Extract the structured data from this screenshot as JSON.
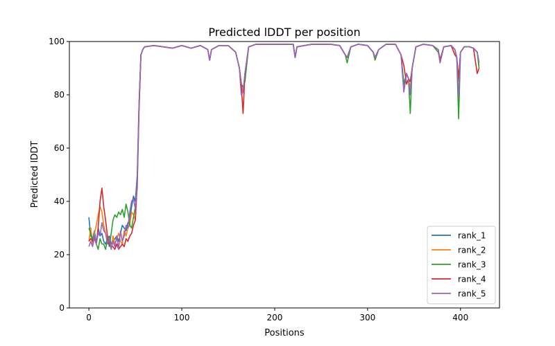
{
  "chart_data": {
    "type": "line",
    "title": "Predicted lDDT per position",
    "xlabel": "Positions",
    "ylabel": "Predicted lDDT",
    "xlim": [
      -21,
      442
    ],
    "ylim": [
      0,
      100
    ],
    "xticks": [
      0,
      100,
      200,
      300,
      400
    ],
    "yticks": [
      0,
      20,
      40,
      60,
      80,
      100
    ],
    "grid": false,
    "legend_position": "lower-right",
    "x": [
      0,
      2,
      4,
      6,
      8,
      10,
      12,
      14,
      16,
      18,
      20,
      22,
      24,
      26,
      28,
      30,
      32,
      34,
      36,
      38,
      40,
      42,
      44,
      46,
      48,
      50,
      52,
      54,
      56,
      58,
      60,
      70,
      80,
      90,
      100,
      110,
      120,
      128,
      130,
      132,
      140,
      150,
      158,
      162,
      164,
      166,
      168,
      172,
      180,
      200,
      220,
      222,
      224,
      240,
      260,
      270,
      276,
      278,
      282,
      290,
      300,
      306,
      308,
      312,
      320,
      330,
      336,
      339,
      342,
      344,
      346,
      348,
      352,
      360,
      370,
      376,
      378,
      382,
      390,
      394,
      396,
      398,
      400,
      404,
      410,
      414,
      418,
      420
    ],
    "series": [
      {
        "name": "rank_1",
        "color": "#1f77b4",
        "values": [
          34,
          27,
          26,
          29,
          24,
          30,
          27,
          28,
          25,
          24,
          26,
          27,
          24,
          25,
          26,
          27,
          25,
          28,
          31,
          30,
          29,
          32,
          33,
          38,
          42,
          40,
          50,
          76,
          95,
          97,
          98,
          98.5,
          98,
          97.5,
          98.5,
          97.5,
          98.5,
          97,
          93,
          97,
          98.5,
          98.5,
          96,
          90,
          84,
          81,
          88,
          98,
          99,
          99,
          99,
          94,
          98,
          99,
          99,
          98.5,
          95,
          94,
          98,
          99,
          98.5,
          96,
          94,
          97,
          99,
          99,
          95,
          84,
          88,
          86,
          82,
          90,
          98,
          99,
          98.5,
          97,
          93,
          98,
          98.5,
          97,
          94,
          85,
          96,
          98,
          98,
          97.5,
          96,
          92
        ]
      },
      {
        "name": "rank_2",
        "color": "#ff7f0e",
        "values": [
          25,
          30,
          24,
          28,
          31,
          35,
          38,
          36,
          31,
          28,
          25,
          25,
          22,
          27,
          24,
          26,
          28,
          25,
          24,
          29,
          27,
          30,
          31,
          36,
          35,
          33,
          48,
          76,
          95,
          97,
          98,
          98.5,
          98,
          97.5,
          98.5,
          97.5,
          98.5,
          97,
          93,
          97,
          98.5,
          98.5,
          96,
          90,
          84,
          81,
          88,
          98,
          99,
          99,
          99,
          94,
          98,
          99,
          99,
          98.5,
          95,
          94,
          98,
          99,
          98.5,
          96,
          94,
          97,
          99,
          99,
          95,
          82,
          88,
          86,
          82,
          90,
          98,
          99,
          98.5,
          97,
          92,
          98,
          98.5,
          97,
          94,
          85,
          96,
          98,
          98,
          97.5,
          96,
          91
        ]
      },
      {
        "name": "rank_3",
        "color": "#2ca02c",
        "values": [
          30,
          28,
          25,
          27,
          24,
          22,
          26,
          24,
          24,
          22,
          26,
          23,
          28,
          33,
          35,
          34,
          36,
          35,
          37,
          34,
          39,
          36,
          31,
          30,
          34,
          38,
          45,
          74,
          95,
          97,
          98,
          98.5,
          98,
          97.5,
          98.5,
          97.5,
          98.5,
          97,
          93,
          97,
          98.5,
          98.5,
          96,
          90,
          84,
          83,
          85,
          98,
          99,
          99,
          99,
          94,
          98,
          99,
          99,
          98.5,
          95,
          92,
          98,
          99,
          98.5,
          96,
          93,
          97,
          99,
          99,
          95,
          84,
          88,
          86,
          73,
          90,
          98,
          99,
          98.5,
          96,
          93,
          98,
          98.5,
          97,
          94,
          71,
          96,
          98,
          98,
          97.5,
          96,
          90
        ]
      },
      {
        "name": "rank_4",
        "color": "#d62728",
        "values": [
          25,
          26,
          25,
          26,
          24,
          30,
          40,
          45,
          38,
          33,
          27,
          24,
          23,
          23,
          22,
          24,
          22,
          23,
          24,
          23,
          26,
          25,
          27,
          28,
          31,
          33,
          47,
          75,
          95,
          97,
          98,
          98.5,
          98,
          97.5,
          98.5,
          97.5,
          98.5,
          97,
          93,
          97,
          98.5,
          98.5,
          96,
          90,
          84,
          73,
          88,
          98,
          99,
          99,
          99,
          94,
          98,
          99,
          99,
          98.5,
          95,
          94,
          98,
          99,
          98.5,
          96,
          94,
          97,
          99,
          99,
          95,
          91,
          84,
          86,
          85,
          90,
          98,
          99,
          98.5,
          97,
          93,
          98,
          98.5,
          95,
          94,
          86,
          96,
          98,
          98,
          97.5,
          88,
          90
        ]
      },
      {
        "name": "rank_5",
        "color": "#9467bd",
        "values": [
          23,
          25,
          23,
          27,
          24,
          28,
          27,
          32,
          29,
          28,
          24,
          26,
          22,
          25,
          23,
          27,
          22,
          29,
          25,
          27,
          31,
          30,
          36,
          40,
          41,
          37,
          48,
          77,
          95,
          97,
          98,
          98.5,
          98,
          97.5,
          98.5,
          97.5,
          98.5,
          97,
          93,
          97,
          98.5,
          98.5,
          96,
          90,
          80,
          81,
          88,
          98,
          99,
          99,
          99,
          94,
          98,
          99,
          99,
          98.5,
          95,
          94,
          98,
          99,
          98.5,
          96,
          94,
          97,
          99,
          99,
          95,
          81,
          88,
          86,
          80,
          90,
          98,
          99,
          98.5,
          97,
          92,
          98,
          98.5,
          97,
          94,
          79,
          96,
          98,
          98,
          97.5,
          96,
          92
        ]
      }
    ]
  }
}
